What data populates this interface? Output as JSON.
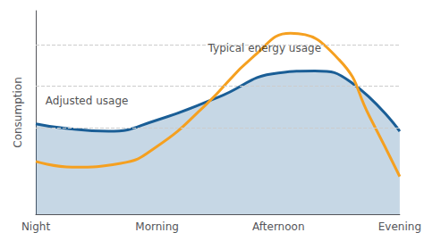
{
  "chart_data": {
    "type": "line",
    "y_label": "Consumption",
    "series": [
      {
        "type": "area",
        "color": "#1a5e96",
        "x": [
          0.0,
          0.2,
          0.6,
          1.0,
          1.5,
          2.0,
          2.3,
          2.6,
          3.0
        ],
        "values": [
          0.48,
          0.46,
          0.44,
          0.5,
          0.62,
          0.75,
          0.76,
          0.7,
          0.44
        ]
      },
      {
        "type": "line",
        "color": "#f5a020",
        "x": [
          0.0,
          0.3,
          0.7,
          1.0,
          1.4,
          1.8,
          2.1,
          2.5,
          2.75,
          3.0
        ],
        "values": [
          0.28,
          0.25,
          0.27,
          0.36,
          0.58,
          0.84,
          0.96,
          0.82,
          0.52,
          0.2
        ]
      }
    ],
    "annotations": [
      {
        "text": "Typical energy usage",
        "x": 1.42,
        "y": 0.88
      },
      {
        "text": "Adjusted usage",
        "x": 0.08,
        "y": 0.6
      }
    ],
    "xlim": [
      0.0,
      3.0
    ],
    "xticks": [
      {
        "value": 0,
        "label": "Night"
      },
      {
        "value": 1,
        "label": "Morning"
      },
      {
        "value": 2,
        "label": "Afternoon"
      },
      {
        "value": 3,
        "label": "Evening"
      }
    ],
    "ylim": [
      0.0,
      1.08
    ],
    "yticks": [
      0.46,
      0.68,
      0.9
    ],
    "grid": true,
    "tick_labels": "x"
  }
}
